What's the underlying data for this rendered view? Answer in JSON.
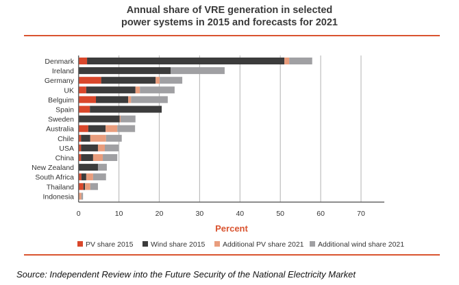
{
  "chart_data": {
    "type": "bar",
    "orientation": "horizontal",
    "stacked": true,
    "title": "Annual share of VRE generation in selected power systems in 2015 and forecasts for 2021",
    "title_lines": [
      "Annual share of VRE generation in selected",
      "power systems in 2015 and forecasts for 2021"
    ],
    "xlabel": "Percent",
    "ylabel": "",
    "xlim": [
      0,
      75
    ],
    "xticks": [
      0,
      10,
      20,
      30,
      40,
      50,
      60,
      70
    ],
    "grid": "vertical",
    "legend_position": "bottom",
    "categories": [
      "Denmark",
      "Ireland",
      "Germany",
      "UK",
      "Belguim",
      "Spain",
      "Sweden",
      "Australia",
      "Chile",
      "USA",
      "China",
      "New Zealand",
      "South Africa",
      "Thailand",
      "Indonesia"
    ],
    "series": [
      {
        "name": "PV share 2015",
        "color": "#d9472b",
        "values": [
          2.1,
          0,
          5.6,
          1.9,
          4.3,
          2.8,
          0.1,
          2.4,
          0.6,
          0.6,
          0.6,
          0,
          0.7,
          1.2,
          0
        ]
      },
      {
        "name": "Wind share 2015",
        "color": "#3c3c3c",
        "values": [
          48.9,
          22.8,
          13.5,
          12.2,
          8.0,
          17.8,
          10.1,
          4.3,
          2.3,
          4.2,
          3.0,
          4.8,
          1.2,
          0.4,
          0
        ]
      },
      {
        "name": "Additional PV share 2021",
        "color": "#e99d7d",
        "values": [
          1.2,
          0,
          1.0,
          1.1,
          0.7,
          0,
          0.2,
          2.9,
          3.9,
          1.7,
          2.4,
          0,
          1.7,
          1.3,
          0.7
        ]
      },
      {
        "name": "Additional wind share 2021",
        "color": "#a0a0a3",
        "values": [
          5.7,
          13.4,
          5.6,
          8.6,
          9.1,
          0,
          3.7,
          4.4,
          3.9,
          3.4,
          3.6,
          2.2,
          3.2,
          1.9,
          0.4
        ]
      }
    ]
  },
  "source": "Source: Independent Review into the Future Security of the National Electricity Market",
  "colors": {
    "accent": "#d9532f",
    "axis": "#666666",
    "grid": "#bdbdbd"
  }
}
